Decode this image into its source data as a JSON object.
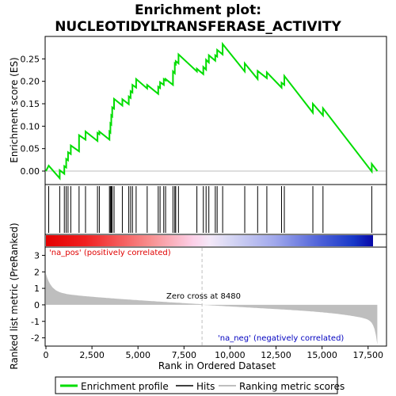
{
  "chart_data": {
    "type": "line",
    "title_line1": "Enrichment plot:",
    "title_line2": "NUCLEOTIDYLTRANSFERASE_ACTIVITY",
    "xlabel": "Rank in Ordered Dataset",
    "ylabel_top": "Enrichment score (ES)",
    "ylabel_bottom": "Ranked list metric (PreRanked)",
    "xlim": [
      0,
      18500
    ],
    "es_ylim": [
      -0.03,
      0.3
    ],
    "metric_ylim": [
      -2.5,
      3.5
    ],
    "x_ticks": [
      0,
      2500,
      5000,
      7500,
      10000,
      12500,
      15000,
      17500
    ],
    "x_tick_labels": [
      "0",
      "2,500",
      "5,000",
      "7,500",
      "10,000",
      "12,500",
      "15,000",
      "17,500"
    ],
    "es_ticks": [
      0.0,
      0.05,
      0.1,
      0.15,
      0.2,
      0.25
    ],
    "es_tick_labels": [
      "0.00",
      "0.05",
      "0.10",
      "0.15",
      "0.20",
      "0.25"
    ],
    "metric_ticks": [
      3,
      2,
      1,
      0,
      -1,
      -2
    ],
    "metric_tick_labels": [
      "3",
      "2",
      "1",
      "0",
      "-1",
      "-2"
    ],
    "hits": [
      150,
      750,
      1000,
      1100,
      1200,
      1350,
      1800,
      2150,
      2800,
      2900,
      3450,
      3500,
      3550,
      3600,
      3700,
      4150,
      4500,
      4600,
      4700,
      4900,
      5500,
      6100,
      6200,
      6400,
      6500,
      6900,
      7000,
      7050,
      7200,
      8200,
      8550,
      8700,
      8850,
      9200,
      9300,
      9600,
      10800,
      11500,
      12000,
      12800,
      12950,
      14500,
      15050,
      17700
    ],
    "es_curve": [
      [
        0,
        0.0
      ],
      [
        150,
        0.012
      ],
      [
        750,
        -0.016
      ],
      [
        750,
        0.002
      ],
      [
        1000,
        -0.006
      ],
      [
        1000,
        0.011
      ],
      [
        1100,
        0.008
      ],
      [
        1100,
        0.027
      ],
      [
        1200,
        0.024
      ],
      [
        1200,
        0.042
      ],
      [
        1350,
        0.038
      ],
      [
        1350,
        0.057
      ],
      [
        1800,
        0.044
      ],
      [
        1800,
        0.08
      ],
      [
        2150,
        0.07
      ],
      [
        2150,
        0.088
      ],
      [
        2800,
        0.067
      ],
      [
        2800,
        0.085
      ],
      [
        2900,
        0.082
      ],
      [
        2900,
        0.088
      ],
      [
        3450,
        0.07
      ],
      [
        3450,
        0.088
      ],
      [
        3500,
        0.086
      ],
      [
        3500,
        0.106
      ],
      [
        3550,
        0.104
      ],
      [
        3550,
        0.124
      ],
      [
        3600,
        0.122
      ],
      [
        3600,
        0.142
      ],
      [
        3700,
        0.139
      ],
      [
        3700,
        0.161
      ],
      [
        4150,
        0.146
      ],
      [
        4150,
        0.16
      ],
      [
        4500,
        0.149
      ],
      [
        4500,
        0.166
      ],
      [
        4600,
        0.163
      ],
      [
        4600,
        0.178
      ],
      [
        4700,
        0.175
      ],
      [
        4700,
        0.192
      ],
      [
        4900,
        0.186
      ],
      [
        4900,
        0.205
      ],
      [
        5500,
        0.184
      ],
      [
        5500,
        0.192
      ],
      [
        6100,
        0.172
      ],
      [
        6100,
        0.188
      ],
      [
        6200,
        0.185
      ],
      [
        6200,
        0.198
      ],
      [
        6400,
        0.192
      ],
      [
        6400,
        0.205
      ],
      [
        6500,
        0.202
      ],
      [
        6500,
        0.205
      ],
      [
        6900,
        0.192
      ],
      [
        6900,
        0.222
      ],
      [
        7000,
        0.218
      ],
      [
        7000,
        0.24
      ],
      [
        7050,
        0.238
      ],
      [
        7050,
        0.245
      ],
      [
        7200,
        0.24
      ],
      [
        7200,
        0.26
      ],
      [
        8200,
        0.222
      ],
      [
        8200,
        0.228
      ],
      [
        8550,
        0.216
      ],
      [
        8550,
        0.232
      ],
      [
        8700,
        0.226
      ],
      [
        8700,
        0.248
      ],
      [
        8850,
        0.242
      ],
      [
        8850,
        0.258
      ],
      [
        9200,
        0.246
      ],
      [
        9200,
        0.258
      ],
      [
        9300,
        0.255
      ],
      [
        9300,
        0.27
      ],
      [
        9600,
        0.26
      ],
      [
        9600,
        0.283
      ],
      [
        10800,
        0.222
      ],
      [
        10800,
        0.24
      ],
      [
        11500,
        0.205
      ],
      [
        11500,
        0.223
      ],
      [
        12000,
        0.207
      ],
      [
        12000,
        0.22
      ],
      [
        12800,
        0.186
      ],
      [
        12800,
        0.197
      ],
      [
        12950,
        0.192
      ],
      [
        12950,
        0.212
      ],
      [
        14500,
        0.13
      ],
      [
        14500,
        0.15
      ],
      [
        15050,
        0.124
      ],
      [
        15050,
        0.14
      ],
      [
        17700,
        -0.001
      ],
      [
        17700,
        0.016
      ],
      [
        18000,
        0.0
      ]
    ],
    "zero_cross": 8480,
    "zero_cross_label": "Zero cross at 8480",
    "pos_label": "'na_pos' (positively correlated)",
    "neg_label": "'na_neg' (negatively correlated)",
    "n_genes": 18000,
    "legend": [
      "Enrichment profile",
      "Hits",
      "Ranking metric scores"
    ],
    "colors": {
      "curve": "#00dd00",
      "hits": "#000000",
      "metric_fill": "#bebebe",
      "pos_text": "#e00000",
      "neg_text": "#0000c0",
      "zero_line": "#bebebe"
    }
  }
}
